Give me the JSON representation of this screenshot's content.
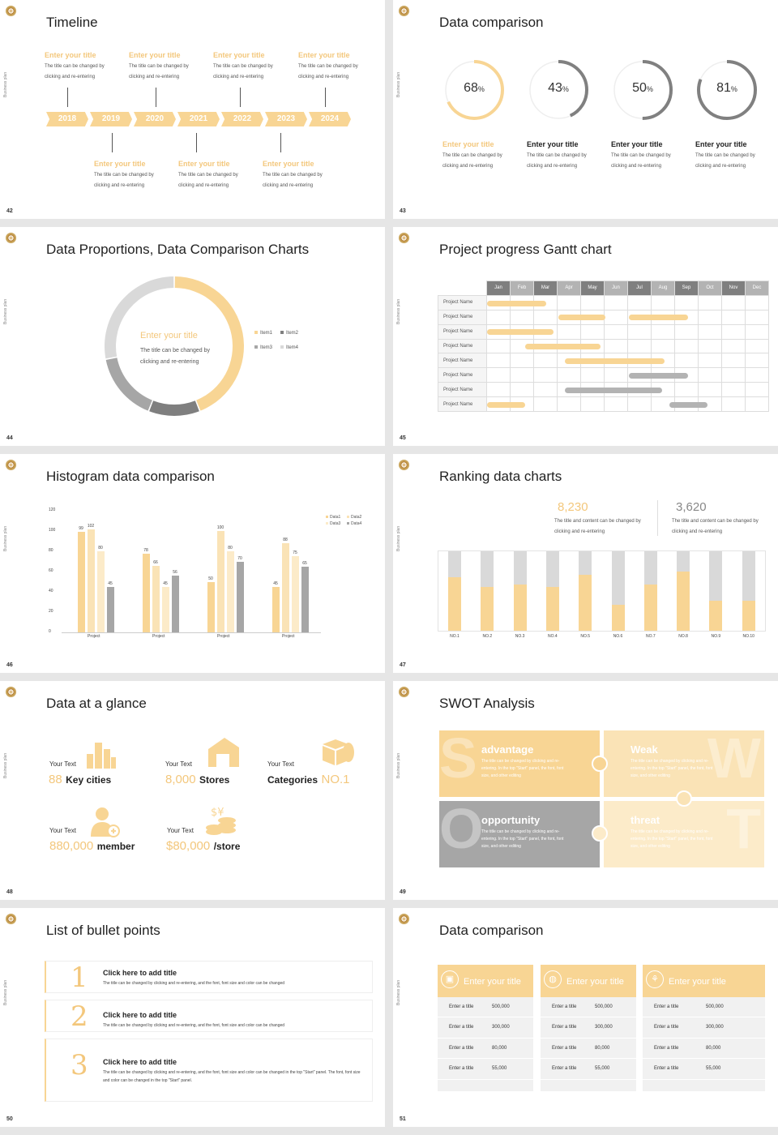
{
  "slides": {
    "s42": {
      "num": "42",
      "title": "Timeline",
      "side": "Business plan",
      "years": [
        "2018",
        "2019",
        "2020",
        "2021",
        "2022",
        "2023",
        "2024"
      ],
      "top_items": [
        {
          "t": "Enter your title",
          "d": "The title can be changed by clicking and re-entering"
        },
        {
          "t": "Enter your title",
          "d": "The title can be changed by clicking and re-entering"
        },
        {
          "t": "Enter your title",
          "d": "The title can be changed by clicking and re-entering"
        },
        {
          "t": "Enter your title",
          "d": "The title can be changed by clicking and re-entering"
        }
      ],
      "bottom_items": [
        {
          "t": "Enter your title",
          "d": "The title can be changed by clicking and re-entering"
        },
        {
          "t": "Enter your title",
          "d": "The title can be changed by clicking and re-entering"
        },
        {
          "t": "Enter your title",
          "d": "The title can be changed by clicking and re-entering"
        }
      ]
    },
    "s43": {
      "num": "43",
      "title": "Data comparison",
      "side": "Business plan",
      "rings": [
        {
          "v": "68",
          "pct": 0.68,
          "t": "Enter your title",
          "d": "The title can be changed by clicking and re-entering",
          "color": "#f8d594"
        },
        {
          "v": "43",
          "pct": 0.43,
          "t": "Enter your title",
          "d": "The title can be changed by clicking and re-entering",
          "color": "#808080"
        },
        {
          "v": "50",
          "pct": 0.5,
          "t": "Enter your title",
          "d": "The title can be changed by clicking and re-entering",
          "color": "#808080"
        },
        {
          "v": "81",
          "pct": 0.81,
          "t": "Enter your title",
          "d": "The title can be changed by clicking and re-entering",
          "color": "#808080"
        }
      ],
      "unit": "%"
    },
    "s44": {
      "num": "44",
      "title": "Data Proportions, Data Comparison Charts",
      "side": "Business plan",
      "center_title": "Enter your title",
      "center_desc": "The title can be changed by clicking and re-entering",
      "legend": [
        "Item1",
        "Item2",
        "Item3",
        "Item4"
      ]
    },
    "s45": {
      "num": "45",
      "title": "Project progress Gantt chart",
      "side": "Business plan",
      "months": [
        "Jan",
        "Feb",
        "Mar",
        "Apr",
        "May",
        "Jun",
        "Jul",
        "Aug",
        "Sep",
        "Oct",
        "Nov",
        "Dec"
      ],
      "rows": [
        "Project Name",
        "Project Name",
        "Project Name",
        "Project Name",
        "Project Name",
        "Project Name",
        "Project Name",
        "Project Name"
      ]
    },
    "s46": {
      "num": "46",
      "title": "Histogram data comparison",
      "side": "Business plan",
      "yticks": [
        "120",
        "100",
        "80",
        "60",
        "40",
        "20",
        "0"
      ],
      "legend": [
        "Data1",
        "Data2",
        "Data3",
        "Data4"
      ]
    },
    "s47": {
      "num": "47",
      "title": "Ranking data charts",
      "side": "Business plan",
      "stat1": "8,230",
      "stat1_desc": "The title and content can be changed by clicking and re-entering",
      "stat2": "3,620",
      "stat2_desc": "The title and content can be changed by clicking and re-entering"
    },
    "s48": {
      "num": "48",
      "title": "Data at a glance",
      "side": "Business plan",
      "items": [
        {
          "label": "Your Text",
          "value": "88",
          "suffix": "Key cities"
        },
        {
          "label": "Your Text",
          "value": "8,000",
          "suffix": "Stores"
        },
        {
          "label": "Your Text",
          "value": "NO.1",
          "prefix": "Categories"
        },
        {
          "label": "Your Text",
          "value": "880,000",
          "suffix": "member"
        },
        {
          "label": "Your Text",
          "value": "$80,000",
          "suffix": "/store"
        }
      ]
    },
    "s49": {
      "num": "49",
      "title": "SWOT Analysis",
      "side": "Business plan",
      "quadrants": [
        {
          "letter": "S",
          "h": "advantage",
          "d": "The title can be changed by clicking and re-entering. In the top \"Start\" panel, the font, font size, and other editing"
        },
        {
          "letter": "W",
          "h": "Weak",
          "d": "The title can be changed by clicking and re-entering. In the top \"Start\" panel, the font, font size, and other editing"
        },
        {
          "letter": "O",
          "h": "opportunity",
          "d": "The title can be changed by clicking and re-entering. In the top \"Start\" panel, the font, font size, and other editing"
        },
        {
          "letter": "T",
          "h": "threat",
          "d": "The title can be changed by clicking and re-entering. In the top \"Start\" panel, the font, font size, and other editing"
        }
      ]
    },
    "s50": {
      "num": "50",
      "title": "List of bullet points",
      "side": "Business plan",
      "items": [
        {
          "n": "1",
          "t": "Click here to add title",
          "d": "The title can be changed by clicking and re-entering, and the font, font size and color can be changed"
        },
        {
          "n": "2",
          "t": "Click here to add title",
          "d": "The title can be changed by clicking and re-entering, and the font, font size and color can be changed"
        },
        {
          "n": "3",
          "t": "Click here to add title",
          "d": "The title can be changed by clicking and re-entering, and the font, font size and color can be changed in the top \"Start\" panel. The font, font size and color can be changed in the top \"Start\" panel."
        }
      ]
    },
    "s51": {
      "num": "51",
      "title": "Data comparison",
      "side": "Business plan",
      "cards": [
        {
          "t": "Enter your title",
          "rows": [
            [
              "Enter a title",
              "500,000"
            ],
            [
              "Enter a title",
              "300,000"
            ],
            [
              "Enter a title",
              "80,000"
            ],
            [
              "Enter a title",
              "55,000"
            ]
          ]
        },
        {
          "t": "Enter your title",
          "rows": [
            [
              "Enter a title",
              "500,000"
            ],
            [
              "Enter a title",
              "300,000"
            ],
            [
              "Enter a title",
              "80,000"
            ],
            [
              "Enter a title",
              "55,000"
            ]
          ]
        },
        {
          "t": "Enter your title",
          "rows": [
            [
              "Enter a title",
              "500,000"
            ],
            [
              "Enter a title",
              "300,000"
            ],
            [
              "Enter a title",
              "80,000"
            ],
            [
              "Enter a title",
              "55,000"
            ]
          ]
        }
      ]
    }
  },
  "chart_data": [
    {
      "type": "pie",
      "title": "",
      "categories": [
        "Item1",
        "Item2",
        "Item3",
        "Item4"
      ],
      "values": [
        44,
        12,
        16,
        28
      ],
      "colors": [
        "#f8d594",
        "#7f7f7f",
        "#a6a6a6",
        "#d9d9d9"
      ]
    },
    {
      "type": "bar",
      "categories": [
        "Project",
        "Project",
        "Project",
        "Project"
      ],
      "ylim": [
        0,
        120
      ],
      "series": [
        {
          "name": "Data1",
          "values": [
            99,
            78,
            50,
            45
          ],
          "color": "#f8d594"
        },
        {
          "name": "Data2",
          "values": [
            102,
            66,
            100,
            88
          ],
          "color": "#fae3b6"
        },
        {
          "name": "Data3",
          "values": [
            80,
            45,
            80,
            75
          ],
          "color": "#fcebc9"
        },
        {
          "name": "Data4",
          "values": [
            45,
            56,
            70,
            65
          ],
          "color": "#a6a6a6"
        }
      ]
    },
    {
      "type": "bar",
      "categories": [
        "NO.1",
        "NO.2",
        "NO.3",
        "NO.4",
        "NO.5",
        "NO.6",
        "NO.7",
        "NO.8",
        "NO.9",
        "NO.10"
      ],
      "ylim": [
        0,
        1
      ],
      "series": [
        {
          "name": "",
          "values": [
            0.67,
            0.55,
            0.58,
            0.55,
            0.7,
            0.33,
            0.58,
            0.75,
            0.38,
            0.38
          ]
        }
      ]
    },
    {
      "type": "table",
      "title": "Gantt",
      "x": [
        "Jan",
        "Feb",
        "Mar",
        "Apr",
        "May",
        "Jun",
        "Jul",
        "Aug",
        "Sep",
        "Oct",
        "Nov",
        "Dec"
      ],
      "tasks": [
        {
          "start": 1,
          "end": 3.5,
          "color": "#f8d594"
        },
        {
          "start": 4,
          "end": 6,
          "color": "#f8d594"
        },
        {
          "start": 7,
          "end": 9.5,
          "color": "#f8d594"
        },
        {
          "start": 1,
          "end": 3.8,
          "color": "#f8d594"
        },
        {
          "start": 2.6,
          "end": 5.8,
          "color": "#f8d594"
        },
        {
          "start": 4.3,
          "end": 8.5,
          "color": "#f8d594"
        },
        {
          "start": 7,
          "end": 9.5,
          "color": "#b3b3b3"
        },
        {
          "start": 4.3,
          "end": 8.4,
          "color": "#b3b3b3"
        },
        {
          "start": 1,
          "end": 2.6,
          "color": "#f8d594"
        },
        {
          "start": 8.7,
          "end": 10.3,
          "color": "#b3b3b3"
        }
      ]
    }
  ]
}
